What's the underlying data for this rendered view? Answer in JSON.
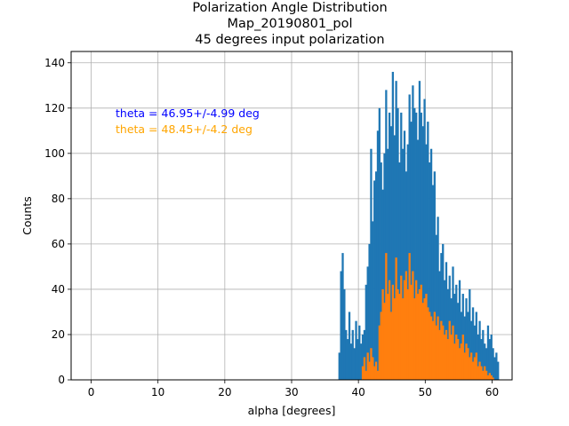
{
  "chart_data": {
    "type": "bar",
    "title": [
      "Polarization Angle Distribution",
      "Map_20190801_pol",
      "45 degrees input polarization"
    ],
    "xlabel": "alpha [degrees]",
    "ylabel": "Counts",
    "xlim": [
      -3,
      63
    ],
    "ylim": [
      0,
      145
    ],
    "x_ticks": [
      0,
      10,
      20,
      30,
      40,
      50,
      60
    ],
    "y_ticks": [
      0,
      20,
      40,
      60,
      80,
      100,
      120,
      140
    ],
    "grid": true,
    "bin_start": 37,
    "bin_width": 0.25,
    "annotations": [
      {
        "text": "theta = 46.95+/-4.99 deg",
        "color": "#0000ff"
      },
      {
        "text": "theta = 48.45+/-4.2 deg",
        "color": "#ffa500"
      }
    ],
    "series": [
      {
        "color": "#1f77b4",
        "values": [
          12,
          48,
          56,
          40,
          22,
          18,
          30,
          16,
          22,
          14,
          26,
          18,
          24,
          16,
          20,
          22,
          42,
          50,
          60,
          102,
          70,
          88,
          92,
          110,
          120,
          96,
          84,
          100,
          128,
          102,
          118,
          112,
          136,
          108,
          132,
          120,
          96,
          118,
          102,
          110,
          92,
          104,
          126,
          114,
          130,
          120,
          118,
          106,
          132,
          118,
          112,
          124,
          104,
          114,
          96,
          102,
          86,
          92,
          64,
          72,
          48,
          56,
          60,
          44,
          52,
          40,
          46,
          36,
          50,
          38,
          42,
          34,
          44,
          30,
          38,
          28,
          36,
          30,
          40,
          26,
          32,
          24,
          30,
          20,
          26,
          18,
          22,
          16,
          14,
          24,
          18,
          20,
          14,
          10,
          12,
          8
        ]
      },
      {
        "color": "#ff7f0e",
        "values": [
          0,
          0,
          0,
          0,
          0,
          0,
          0,
          0,
          0,
          0,
          0,
          0,
          0,
          0,
          6,
          10,
          4,
          12,
          8,
          14,
          10,
          6,
          8,
          4,
          24,
          30,
          40,
          34,
          56,
          38,
          44,
          30,
          42,
          36,
          54,
          40,
          38,
          46,
          36,
          44,
          48,
          40,
          56,
          42,
          48,
          36,
          44,
          38,
          40,
          42,
          34,
          36,
          38,
          32,
          30,
          28,
          26,
          30,
          24,
          28,
          22,
          26,
          24,
          20,
          22,
          18,
          26,
          20,
          24,
          16,
          20,
          18,
          14,
          16,
          20,
          12,
          16,
          14,
          10,
          12,
          8,
          10,
          12,
          6,
          8,
          6,
          4,
          6,
          4,
          2,
          3,
          2,
          1,
          0,
          0,
          0
        ]
      }
    ]
  }
}
